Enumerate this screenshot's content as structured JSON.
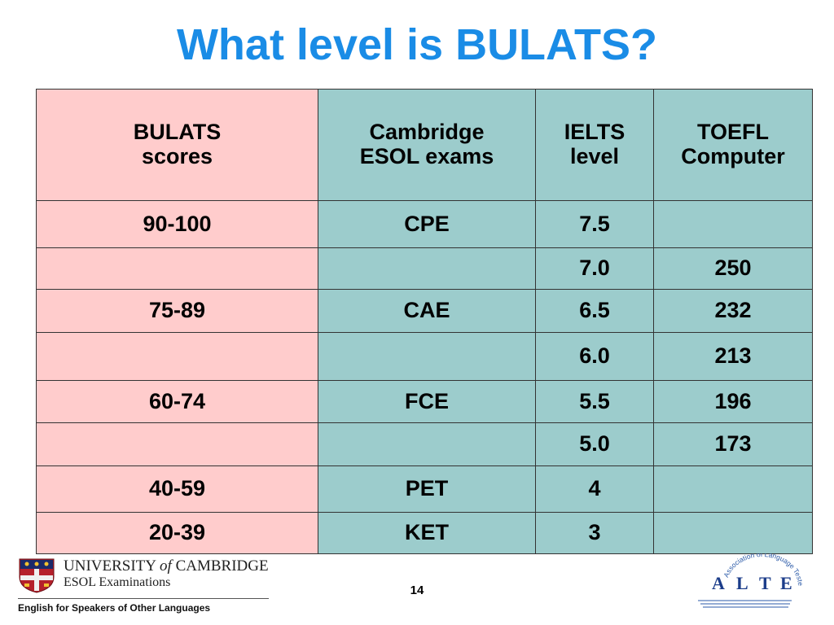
{
  "title": "What level is BULATS?",
  "table": {
    "headers": [
      [
        "BULATS",
        "scores"
      ],
      [
        "Cambridge",
        "ESOL exams"
      ],
      [
        "IELTS",
        "level"
      ],
      [
        "TOEFL",
        "Computer"
      ]
    ],
    "rows": [
      [
        "90-100",
        "CPE",
        "7.5",
        ""
      ],
      [
        "",
        "",
        "7.0",
        "250"
      ],
      [
        "75-89",
        "CAE",
        "6.5",
        "232"
      ],
      [
        "",
        "",
        "6.0",
        "213"
      ],
      [
        "60-74",
        "FCE",
        "5.5",
        "196"
      ],
      [
        "",
        "",
        "5.0",
        "173"
      ],
      [
        "40-59",
        "PET",
        "4",
        ""
      ],
      [
        "20-39",
        "KET",
        "3",
        ""
      ]
    ]
  },
  "colors": {
    "title": "#1a8ce6",
    "bulats_column": "#ffcccc",
    "other_columns": "#9ccccc"
  },
  "footer": {
    "university_prefix": "UNIVERSITY",
    "university_of": "of",
    "university_suffix": "CAMBRIDGE",
    "esol": "ESOL Examinations",
    "tagline": "English for Speakers of Other Languages",
    "page_number": "14",
    "alte_letters": [
      "A",
      "L",
      "T",
      "E"
    ],
    "alte_ring_text": "Association of Language Testers in Europe",
    "crest_icon": "cambridge-crest-icon"
  }
}
